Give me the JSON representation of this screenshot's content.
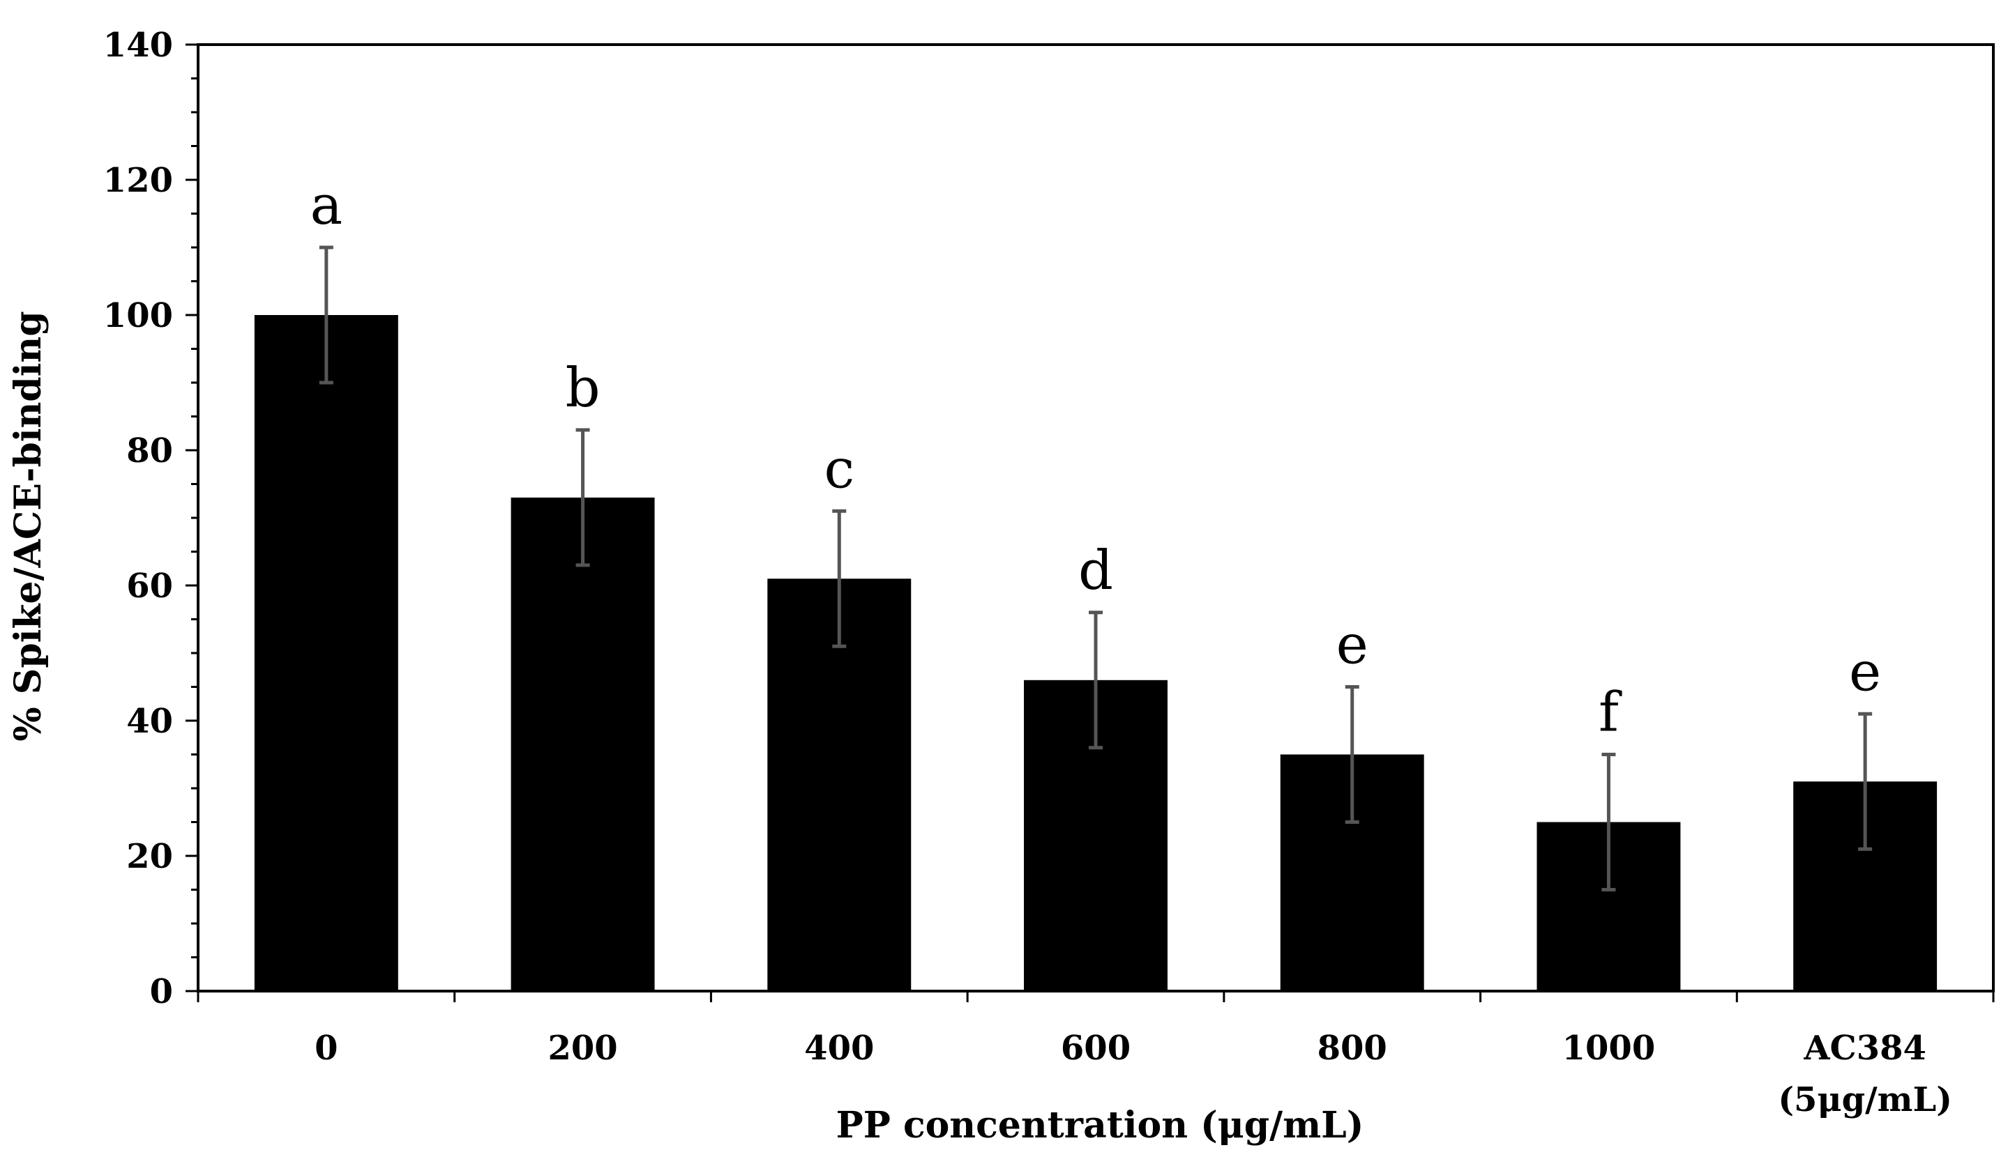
{
  "chart_data": {
    "type": "bar",
    "title": "",
    "xlabel": "PP concentration (μg/mL)",
    "ylabel": "% Spike/ACE-binding",
    "ylim": [
      0,
      140
    ],
    "yticks": [
      0,
      20,
      40,
      60,
      80,
      100,
      120,
      140
    ],
    "ytick_labels": [
      "0",
      "20",
      "40",
      "60",
      "80",
      "100",
      "120",
      "140"
    ],
    "categories": [
      [
        "0"
      ],
      [
        "200"
      ],
      [
        "400"
      ],
      [
        "600"
      ],
      [
        "800"
      ],
      [
        "1000"
      ],
      [
        "AC384",
        "(5μg/mL)"
      ]
    ],
    "values": [
      100,
      73,
      61,
      46,
      35,
      25,
      31
    ],
    "error": [
      10,
      10,
      10,
      10,
      10,
      10,
      10
    ],
    "significance_letters": [
      "a",
      "b",
      "c",
      "d",
      "e",
      "f",
      "e"
    ],
    "bar_color": "#000000",
    "error_bar_color": "#555555",
    "grid": false,
    "legend": "none"
  }
}
